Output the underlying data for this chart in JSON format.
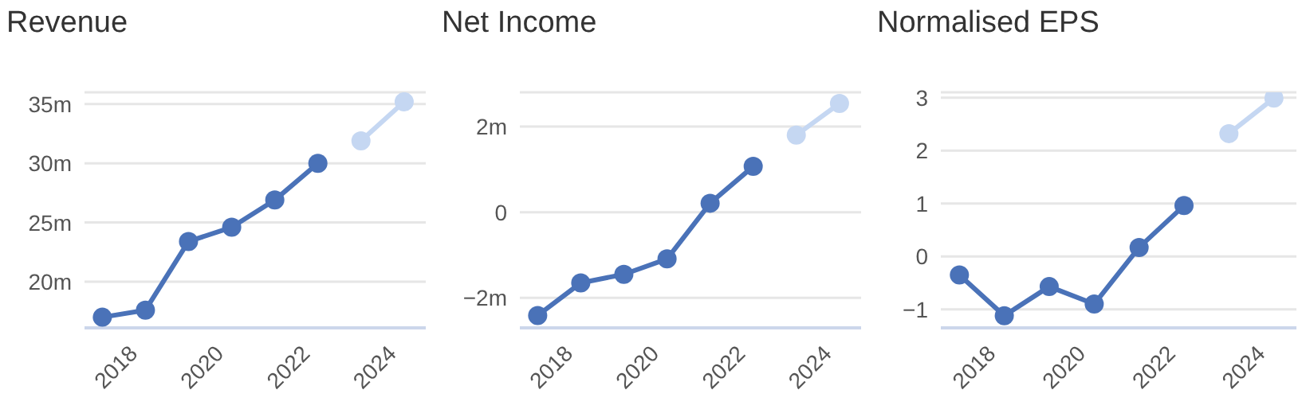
{
  "chart_data": [
    {
      "type": "line",
      "title": "Revenue",
      "xlim": [
        "2017-01",
        "2024-12"
      ],
      "xticks": [
        "2018",
        "2020",
        "2022",
        "2024"
      ],
      "ylim": [
        16.1,
        36
      ],
      "yticks": [
        {
          "value": 20,
          "label": "20m"
        },
        {
          "value": 25,
          "label": "25m"
        },
        {
          "value": 30,
          "label": "30m"
        },
        {
          "value": 35,
          "label": "35m"
        }
      ],
      "grid": "y",
      "marker": "circle",
      "series": [
        {
          "color": "#4a72b8",
          "x": [
            "2017-06",
            "2018-06",
            "2019-06",
            "2020-06",
            "2021-06",
            "2022-06"
          ],
          "values": [
            17.0,
            17.6,
            23.4,
            24.6,
            26.9,
            30.0
          ]
        },
        {
          "color": "#c5d7f2",
          "x": [
            "2023-06",
            "2024-06"
          ],
          "values": [
            31.9,
            35.2
          ]
        }
      ]
    },
    {
      "type": "line",
      "title": "Net Income",
      "xlim": [
        "2017-01",
        "2024-12"
      ],
      "xticks": [
        "2018",
        "2020",
        "2022",
        "2024"
      ],
      "ylim": [
        -2.7,
        2.8
      ],
      "yticks": [
        {
          "value": -2,
          "label": "−2m"
        },
        0,
        {
          "value": 2,
          "label": "2m"
        }
      ],
      "grid": "y",
      "marker": "circle",
      "series": [
        {
          "color": "#4a72b8",
          "x": [
            "2017-06",
            "2018-06",
            "2019-06",
            "2020-06",
            "2021-06",
            "2022-06"
          ],
          "values": [
            -2.41,
            -1.65,
            -1.45,
            -1.09,
            0.21,
            1.07
          ]
        },
        {
          "color": "#c5d7f2",
          "x": [
            "2023-06",
            "2024-06"
          ],
          "values": [
            1.8,
            2.54
          ]
        }
      ]
    },
    {
      "type": "line",
      "title": "Normalised EPS",
      "xlim": [
        "2017-01",
        "2024-12"
      ],
      "xticks": [
        "2018",
        "2020",
        "2022",
        "2024"
      ],
      "ylim": [
        -1.35,
        3.1
      ],
      "yticks": [
        {
          "value": -1,
          "label": "−1"
        },
        0,
        1,
        2,
        3
      ],
      "grid": "y",
      "marker": "circle",
      "series": [
        {
          "color": "#4a72b8",
          "x": [
            "2017-06",
            "2018-06",
            "2019-06",
            "2020-06",
            "2021-06",
            "2022-06"
          ],
          "values": [
            -0.35,
            -1.12,
            -0.57,
            -0.9,
            0.17,
            0.96
          ]
        },
        {
          "color": "#c5d7f2",
          "x": [
            "2023-06",
            "2024-06"
          ],
          "values": [
            2.32,
            2.99
          ]
        }
      ]
    }
  ]
}
